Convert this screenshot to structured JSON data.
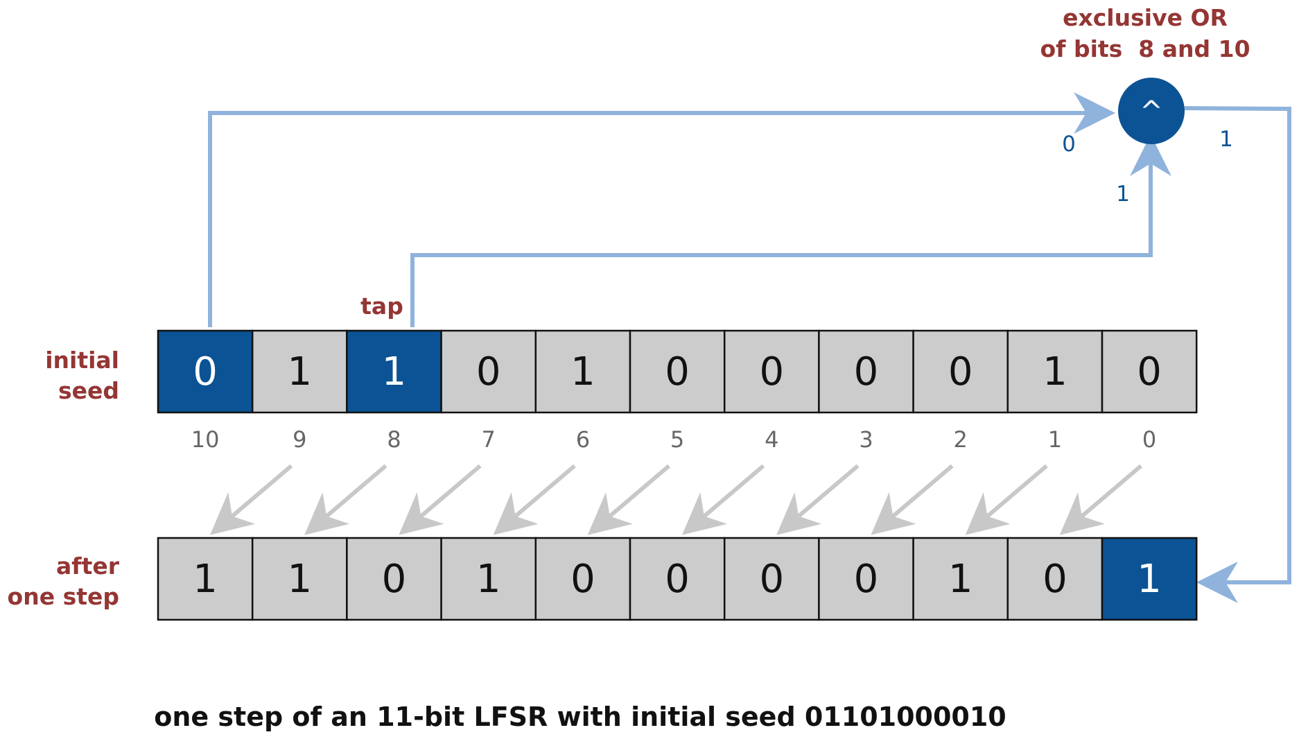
{
  "labels": {
    "xor_line1": "exclusive OR",
    "xor_line2": "of bits  8 and 10",
    "xor_symbol": "^",
    "tap": "tap",
    "initial_line1": "initial",
    "initial_line2": "seed",
    "after_line1": "after",
    "after_line2": "one step",
    "caption": "one step of an 11-bit LFSR with initial seed 01101000010"
  },
  "wire_values": {
    "from_bit10": "0",
    "from_bit8": "1",
    "xor_output": "1"
  },
  "initial_bits": [
    "0",
    "1",
    "1",
    "0",
    "1",
    "0",
    "0",
    "0",
    "0",
    "1",
    "0"
  ],
  "initial_highlight": [
    0,
    2
  ],
  "after_bits": [
    "1",
    "1",
    "0",
    "1",
    "0",
    "0",
    "0",
    "0",
    "1",
    "0",
    "1"
  ],
  "after_highlight": [
    10
  ],
  "indices": [
    "10",
    "9",
    "8",
    "7",
    "6",
    "5",
    "4",
    "3",
    "2",
    "1",
    "0"
  ],
  "colors": {
    "highlight": "#0b5394",
    "cell": "#cccccc",
    "wire": "#8fb3dc",
    "shift_arrow": "#c8c8c8",
    "label": "#943634"
  }
}
